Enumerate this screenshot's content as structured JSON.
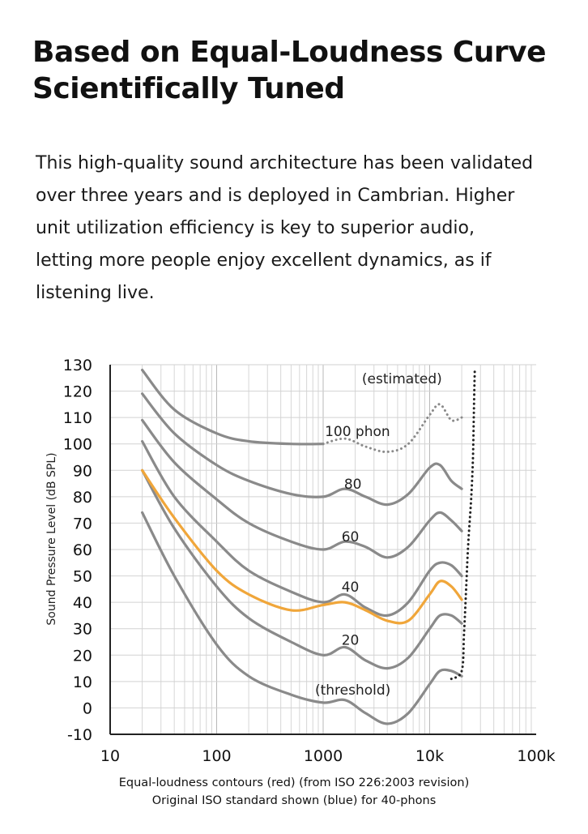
{
  "headline": {
    "line1": "Based on Equal-Loudness Curve",
    "line2": "Scientifically Tuned"
  },
  "body": {
    "lines": [
      "This high-quality sound architecture has been validated",
      "over three years and is deployed in Cambrian. Higher",
      "unit utilization efficiency is key to superior audio,",
      "letting more people enjoy excellent dynamics, as if",
      "listening live."
    ]
  },
  "chart_data": {
    "type": "line",
    "ylabel": "Sound Pressure Level (dB SPL)",
    "xlabel": "",
    "x_scale": "log",
    "xlim": [
      10,
      100000
    ],
    "ylim": [
      -10,
      130
    ],
    "x_ticks": [
      10,
      100,
      1000,
      10000,
      100000
    ],
    "x_tick_labels": [
      "10",
      "100",
      "1000",
      "10k",
      "100k"
    ],
    "y_ticks": [
      -10,
      0,
      10,
      20,
      30,
      40,
      50,
      60,
      70,
      80,
      90,
      100,
      110,
      120,
      130
    ],
    "y_tick_labels": [
      "-10",
      "0",
      "10",
      "20",
      "30",
      "40",
      "50",
      "60",
      "70",
      "80",
      "90",
      "100",
      "110",
      "120",
      "130"
    ],
    "grid": true,
    "annotations": [
      {
        "text": "(estimated)",
        "x": 5500,
        "y": 123
      },
      {
        "text": "100 phon",
        "x": 2100,
        "y": 103
      },
      {
        "text": "80",
        "x": 1900,
        "y": 83
      },
      {
        "text": "60",
        "x": 1800,
        "y": 63
      },
      {
        "text": "40",
        "x": 1800,
        "y": 44
      },
      {
        "text": "20",
        "x": 1800,
        "y": 24
      },
      {
        "text": "(threshold)",
        "x": 1900,
        "y": 5
      }
    ],
    "series": [
      {
        "color": "#8a8a8a",
        "style": "solid",
        "x": [
          20,
          40,
          100,
          200,
          500,
          1000
        ],
        "y": [
          128,
          113,
          104,
          101,
          100,
          100
        ]
      },
      {
        "color": "#8a8a8a",
        "style": "dotted",
        "x": [
          1000,
          1600,
          2500,
          4000,
          6300,
          10000,
          12500,
          16000,
          20000
        ],
        "y": [
          100,
          102,
          99,
          97,
          100,
          111,
          115,
          109,
          110
        ]
      },
      {
        "color": "#8a8a8a",
        "style": "solid",
        "x": [
          20,
          40,
          100,
          200,
          500,
          1000,
          1600,
          2500,
          4000,
          6300,
          10000,
          12500,
          16000,
          20000
        ],
        "y": [
          119,
          104,
          92,
          86,
          81,
          80,
          83,
          80,
          77,
          81,
          91,
          92,
          86,
          83
        ]
      },
      {
        "color": "#8a8a8a",
        "style": "solid",
        "x": [
          20,
          40,
          100,
          200,
          500,
          1000,
          1600,
          2500,
          4000,
          6300,
          10000,
          12500,
          16000,
          20000
        ],
        "y": [
          109,
          93,
          79,
          70,
          63,
          60,
          63,
          61,
          57,
          61,
          71,
          74,
          71,
          67
        ]
      },
      {
        "color": "#8a8a8a",
        "style": "solid",
        "x": [
          20,
          40,
          100,
          200,
          500,
          1000,
          1600,
          2500,
          4000,
          6300,
          10000,
          12500,
          16000,
          20000
        ],
        "y": [
          101,
          80,
          63,
          52,
          44,
          40,
          43,
          38,
          35,
          40,
          52,
          55,
          54,
          50
        ]
      },
      {
        "color": "#8a8a8a",
        "style": "solid",
        "x": [
          20,
          40,
          100,
          200,
          500,
          1000,
          1600,
          2500,
          4000,
          6300,
          10000,
          12500,
          16000,
          20000
        ],
        "y": [
          90,
          68,
          46,
          34,
          25,
          20,
          23,
          18,
          15,
          19,
          30,
          35,
          35,
          32
        ]
      },
      {
        "color": "#8a8a8a",
        "style": "solid",
        "x": [
          20,
          40,
          100,
          200,
          500,
          1000,
          1600,
          2500,
          4000,
          6300,
          10000,
          12500,
          16000,
          20000
        ],
        "y": [
          74,
          50,
          24,
          12,
          5,
          2,
          3,
          -2,
          -6,
          -2,
          9,
          14,
          14,
          12
        ]
      },
      {
        "color": "#f0a63a",
        "style": "solid",
        "x": [
          20,
          40,
          100,
          200,
          500,
          1000,
          1600,
          2500,
          4000,
          6300,
          10000,
          12500,
          16000,
          20000
        ],
        "y": [
          90,
          72,
          52,
          43,
          37,
          39,
          40,
          37,
          33,
          33,
          43,
          48,
          46,
          41
        ]
      },
      {
        "color": "#222222",
        "style": "dotted",
        "x": [
          16000,
          20000,
          21000,
          22000,
          23000,
          24500,
          25500,
          26000,
          26500
        ],
        "y": [
          11,
          14,
          28,
          45,
          62,
          79,
          95,
          112,
          128
        ]
      }
    ]
  },
  "caption": {
    "line1": "Equal-loudness contours (red) (from ISO 226:2003 revision)",
    "line2": "Original ISO standard shown (blue) for 40-phons"
  }
}
